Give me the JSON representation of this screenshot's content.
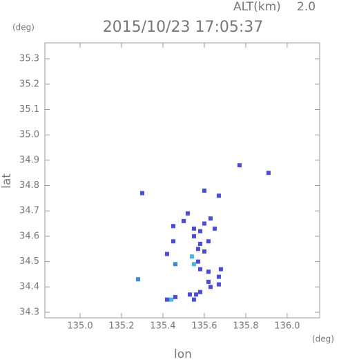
{
  "chart_data": {
    "type": "scatter",
    "title": "2015/10/23 17:05:37",
    "alt_label": "ALT(km)",
    "alt_value": 2.0,
    "alt_value_label": "2.0",
    "y_unit": "(deg)",
    "x_unit": "(deg)",
    "x_label": "lon",
    "y_label": "lat",
    "xlim": [
      134.83,
      136.157
    ],
    "ylim": [
      34.278,
      35.363
    ],
    "xticks": [
      {
        "value": 135.0,
        "label": "135.0"
      },
      135.2,
      135.4,
      135.6,
      135.8,
      {
        "value": 136.0,
        "label": "136.0"
      }
    ],
    "yticks": [
      34.3,
      34.4,
      34.5,
      34.6,
      34.7,
      34.8,
      34.9,
      {
        "value": 35.0,
        "label": "35.0"
      },
      35.1,
      35.2,
      35.3
    ],
    "x": [
      135.77,
      135.91,
      135.3,
      135.6,
      135.67,
      135.52,
      135.5,
      135.45,
      135.55,
      135.6,
      135.63,
      135.65,
      135.58,
      135.55,
      135.45,
      135.58,
      135.62,
      135.57,
      135.6,
      135.54,
      135.55,
      135.57,
      135.58,
      135.46,
      135.42,
      135.62,
      135.68,
      135.67,
      135.67,
      135.62,
      135.58,
      135.56,
      135.53,
      135.46,
      135.42,
      135.44,
      135.28,
      135.63,
      135.55
    ],
    "values": [
      34.88,
      34.85,
      34.77,
      34.78,
      34.76,
      34.69,
      34.66,
      34.64,
      34.63,
      34.65,
      34.67,
      34.63,
      34.62,
      34.6,
      34.58,
      34.57,
      34.58,
      34.55,
      34.54,
      34.52,
      34.49,
      34.5,
      34.47,
      34.49,
      34.53,
      34.46,
      34.47,
      34.44,
      34.41,
      34.42,
      34.38,
      34.37,
      34.37,
      34.36,
      34.35,
      34.35,
      34.43,
      34.4,
      34.35
    ],
    "colors": [
      "#4a4ae8",
      "#4a4ae8",
      "#4a4ae8",
      "#4a4ae8",
      "#4a4ae8",
      "#4a4ae8",
      "#4a4ae8",
      "#4a4ae8",
      "#4a4ae8",
      "#4a4ae8",
      "#4a4ae8",
      "#4a4ae8",
      "#4a4ae8",
      "#4a4ae8",
      "#4a4ae8",
      "#4a4ae8",
      "#4a4ae8",
      "#4a4ae8",
      "#4a4ae8",
      "#3fb8e8",
      "#3fb8e8",
      "#4a4ae8",
      "#4a4ae8",
      "#3a8ad8",
      "#4a4ae8",
      "#4a4ae8",
      "#4a4ae8",
      "#4a4ae8",
      "#4a4ae8",
      "#4a4ae8",
      "#4a4ae8",
      "#4a4ae8",
      "#4a4ae8",
      "#4a4ae8",
      "#4a4ae8",
      "#3fb8e8",
      "#3a8ad8",
      "#4a4ae8",
      "#4a4ae8"
    ]
  }
}
